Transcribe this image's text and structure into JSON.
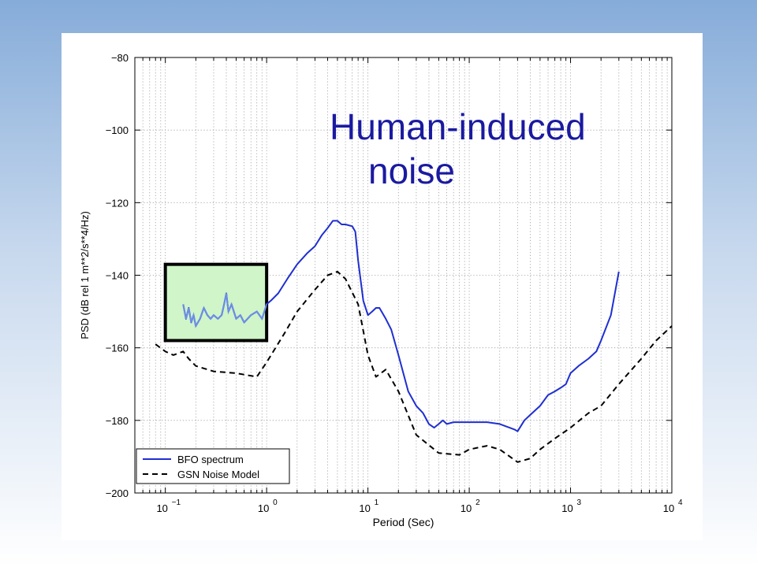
{
  "slide": {
    "annotation_line1": "Human-induced",
    "annotation_line2": "noise"
  },
  "chart_data": {
    "type": "line",
    "xlabel": "Period (Sec)",
    "ylabel": "PSD (dB rel 1 m**2/s**4/Hz)",
    "xscale": "log",
    "xlim": [
      0.05,
      10000
    ],
    "ylim": [
      -200,
      -80
    ],
    "yticks": [
      -200,
      -180,
      -160,
      -140,
      -120,
      -100,
      -80
    ],
    "ytick_labels": [
      "−200",
      "−180",
      "−160",
      "−140",
      "−120",
      "−100",
      "−80"
    ],
    "xticks": [
      0.1,
      1,
      10,
      100,
      1000,
      10000
    ],
    "xtick_labels": [
      {
        "base": "10",
        "exp": "−1"
      },
      {
        "base": "10",
        "exp": "0"
      },
      {
        "base": "10",
        "exp": "1"
      },
      {
        "base": "10",
        "exp": "2"
      },
      {
        "base": "10",
        "exp": "3"
      },
      {
        "base": "10",
        "exp": "4"
      }
    ],
    "grid": true,
    "legend_position": "bottom-left",
    "highlight_region": {
      "x": [
        0.1,
        1.0
      ],
      "y": [
        -158,
        -137
      ],
      "fill": "#cff5c8",
      "border": "#000000"
    },
    "series": [
      {
        "name": "BFO spectrum",
        "color": "#1f2fd0",
        "style": "solid",
        "x": [
          0.15,
          0.16,
          0.17,
          0.18,
          0.19,
          0.2,
          0.22,
          0.24,
          0.26,
          0.28,
          0.3,
          0.33,
          0.36,
          0.38,
          0.4,
          0.42,
          0.45,
          0.5,
          0.55,
          0.6,
          0.7,
          0.8,
          0.9,
          1.0,
          1.1,
          1.3,
          1.6,
          2.0,
          2.5,
          3.0,
          3.5,
          4.0,
          4.5,
          5.0,
          5.5,
          6.0,
          7.0,
          7.5,
          8.0,
          9.0,
          10,
          11,
          12,
          13,
          15,
          17,
          20,
          25,
          30,
          35,
          40,
          45,
          50,
          55,
          60,
          70,
          80,
          100,
          120,
          150,
          200,
          250,
          280,
          300,
          350,
          400,
          500,
          600,
          700,
          800,
          900,
          1000,
          1200,
          1500,
          1800,
          2000,
          2500,
          3000
        ],
        "y": [
          -148,
          -152,
          -149,
          -153,
          -151,
          -154,
          -152,
          -149,
          -151,
          -152,
          -151,
          -152,
          -151,
          -148,
          -145,
          -150,
          -148,
          -152,
          -151,
          -153,
          -151,
          -150,
          -152,
          -148,
          -147,
          -145,
          -141,
          -137,
          -134,
          -132,
          -129,
          -127,
          -125,
          -125,
          -126,
          -126,
          -126.5,
          -128,
          -136,
          -147,
          -151,
          -150,
          -149,
          -149,
          -152,
          -155,
          -162,
          -172,
          -176,
          -178,
          -181,
          -182,
          -181,
          -180,
          -181,
          -180.5,
          -180.5,
          -180.5,
          -180.5,
          -180.5,
          -181,
          -182,
          -182.5,
          -183,
          -180,
          -178.5,
          -176,
          -173,
          -172,
          -171,
          -170,
          -167,
          -165,
          -163,
          -161,
          -158,
          -151,
          -139
        ]
      },
      {
        "name": "GSN Noise Model",
        "color": "#000000",
        "style": "dashed",
        "x": [
          0.08,
          0.1,
          0.12,
          0.15,
          0.17,
          0.2,
          0.3,
          0.5,
          0.8,
          1.0,
          1.5,
          2.0,
          3.0,
          4.0,
          5.0,
          6.0,
          8.0,
          10,
          12,
          15,
          20,
          30,
          50,
          80,
          100,
          150,
          200,
          300,
          400,
          500,
          700,
          1000,
          1500,
          2000,
          3000,
          5000,
          7000,
          10000
        ],
        "y": [
          -159,
          -161,
          -162,
          -161,
          -163,
          -165,
          -166.5,
          -167,
          -168,
          -164,
          -156,
          -150,
          -144,
          -140,
          -139,
          -141,
          -148,
          -162,
          -168,
          -166,
          -172,
          -184,
          -189,
          -189.5,
          -188,
          -187,
          -188,
          -191.5,
          -190.5,
          -188,
          -185,
          -182,
          -178,
          -176,
          -170,
          -163,
          -158,
          -154
        ]
      }
    ]
  }
}
